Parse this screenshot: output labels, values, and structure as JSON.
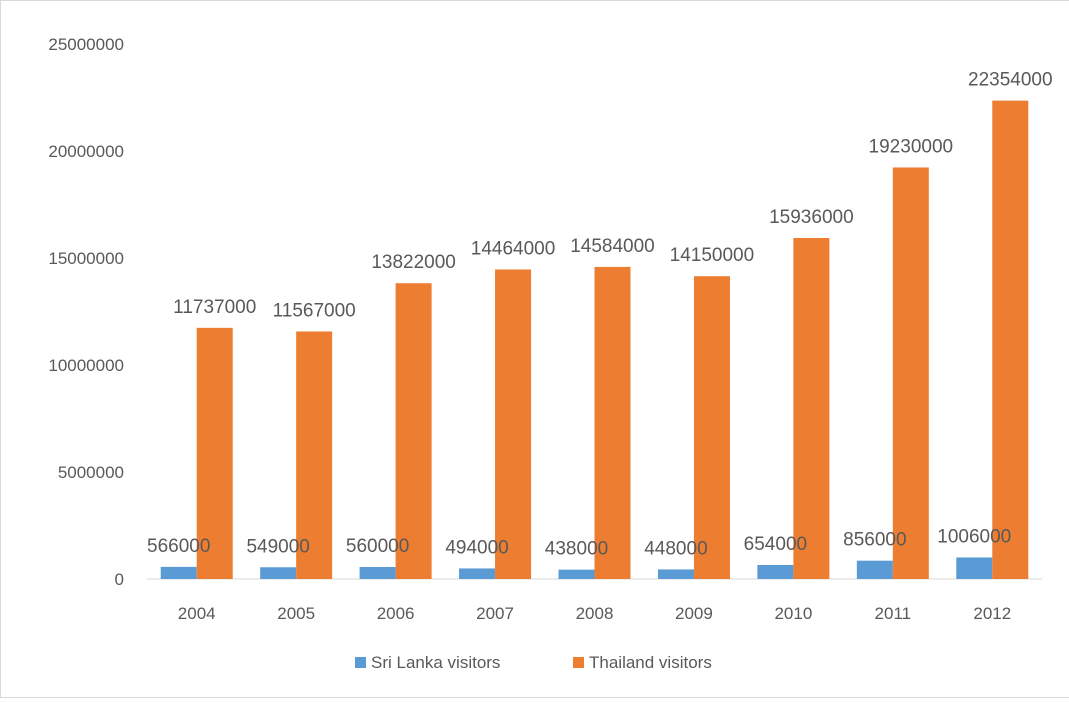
{
  "chart_data": {
    "type": "bar",
    "categories": [
      "2004",
      "2005",
      "2006",
      "2007",
      "2008",
      "2009",
      "2010",
      "2011",
      "2012"
    ],
    "series": [
      {
        "name": "Sri Lanka visitors",
        "values": [
          566000,
          549000,
          560000,
          494000,
          438000,
          448000,
          654000,
          856000,
          1006000
        ],
        "color": "#5b9bd5"
      },
      {
        "name": "Thailand visitors",
        "values": [
          11737000,
          11567000,
          13822000,
          14464000,
          14584000,
          14150000,
          15936000,
          19230000,
          22354000
        ],
        "color": "#ed7d31"
      }
    ],
    "title": "",
    "xlabel": "",
    "ylabel": "",
    "ylim": [
      0,
      25000000
    ],
    "y_ticks": [
      "0",
      "5000000",
      "10000000",
      "15000000",
      "20000000",
      "25000000"
    ],
    "grid": false,
    "legend_position": "bottom",
    "data_labels": true
  }
}
